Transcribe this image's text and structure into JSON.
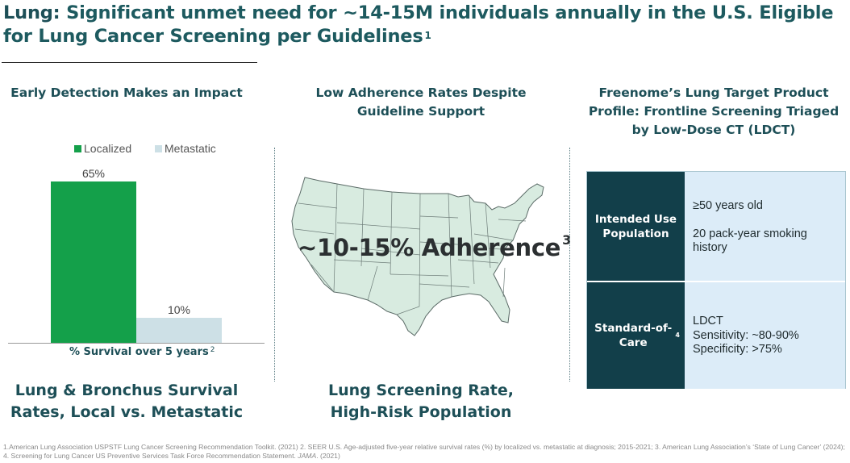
{
  "header": {
    "title_lead": "Lung:",
    "title_rest": " Significant unmet need for ~14-15M individuals annually in the U.S. Eligible for Lung Cancer Screening per Guidelines",
    "title_ref": "1"
  },
  "left_panel": {
    "heading": "Early Detection Makes an Impact",
    "caption_line1": "Lung & Bronchus Survival",
    "caption_line2": "Rates, Local vs. Metastatic"
  },
  "chart_data": {
    "type": "bar",
    "title": "",
    "categories": [
      "Localized",
      "Metastatic"
    ],
    "values": [
      65,
      10
    ],
    "value_labels": [
      "65%",
      "10%"
    ],
    "colors": [
      "#14a04a",
      "#cde0e6"
    ],
    "xlabel": "% Survival over 5 years",
    "xlabel_ref": "2",
    "ylabel": "",
    "ylim": [
      0,
      65
    ],
    "legend": [
      "Localized",
      "Metastatic"
    ],
    "legend_position": "top"
  },
  "middle_panel": {
    "heading_line1": "Low Adherence Rates Despite",
    "heading_line2": "Guideline Support",
    "adherence_text": "~10-15% Adherence",
    "adherence_ref": "3",
    "caption_line1": "Lung Screening Rate,",
    "caption_line2": "High-Risk Population"
  },
  "right_panel": {
    "heading_line1": "Freenome’s Lung Target Product",
    "heading_line2": "Profile: Frontline Screening Triaged",
    "heading_line3": "by Low-Dose CT (LDCT)",
    "row1_key": "Intended Use Population",
    "row1_val1": "≥50 years old",
    "row1_val2": "20 pack-year smoking history",
    "row2_key": "Standard-of-Care",
    "row2_ref": "4",
    "row2_val1": "LDCT",
    "row2_val2": "Sensitivity: ~80-90%",
    "row2_val3": "Specificity: >75%"
  },
  "footnote": {
    "text": "1.American Lung Association USPSTF Lung Cancer Screening Recommendation Toolkit. (2021) 2. SEER U.S. Age-adjusted five-year relative survival rates (%) by localized vs. metastatic at  diagnosis; 2015-2021; 3. American Lung Association’s ‘State of Lung Cancer’ (2024); 4. Screening for Lung Cancer US Preventive Services Task Force Recommendation Statement. ",
    "journal": "JAMA",
    "year": ". (2021)"
  },
  "colors": {
    "brand_teal": "#1d4f57",
    "table_dark": "#123f4a",
    "table_light": "#dcecf8",
    "localized_green": "#14a04a",
    "metastatic_gray": "#cde0e6"
  }
}
